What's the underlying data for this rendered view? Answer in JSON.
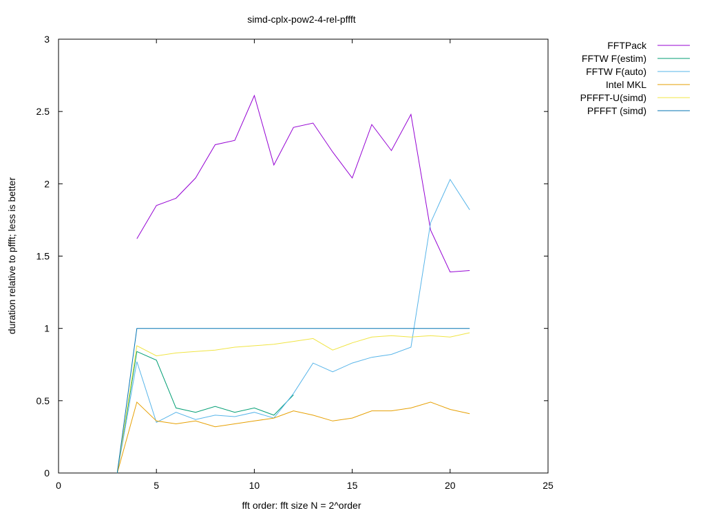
{
  "chart_data": {
    "type": "line",
    "title": "simd-cplx-pow2-4-rel-pffft",
    "xlabel": "fft order: fft size N = 2^order",
    "ylabel": "duration relative to pffft; less is better",
    "xlim": [
      0,
      25
    ],
    "ylim": [
      0,
      3
    ],
    "xticks": [
      "0",
      "5",
      "10",
      "15",
      "20",
      "25"
    ],
    "yticks": [
      "0",
      "0.5",
      "1",
      "1.5",
      "2",
      "2.5",
      "3"
    ],
    "grid": false,
    "legend_position": "outside-top-right",
    "series": [
      {
        "name": "FFTPack",
        "color": "#9400d3",
        "x": [
          4,
          5,
          6,
          7,
          8,
          9,
          10,
          11,
          12,
          13,
          14,
          15,
          16,
          17,
          18,
          19,
          20,
          21
        ],
        "y": [
          1.62,
          1.85,
          1.9,
          2.04,
          2.27,
          2.3,
          2.61,
          2.13,
          2.39,
          2.42,
          2.22,
          2.04,
          2.41,
          2.23,
          2.48,
          1.68,
          1.39,
          1.4
        ]
      },
      {
        "name": "FFTW F(estim)",
        "color": "#009e73",
        "x": [
          3,
          4,
          5,
          6,
          7,
          8,
          9,
          10,
          11,
          12
        ],
        "y": [
          0,
          0.84,
          0.78,
          0.45,
          0.42,
          0.46,
          0.42,
          0.45,
          0.4,
          0.54
        ]
      },
      {
        "name": "FFTW F(auto)",
        "color": "#56b4e9",
        "x": [
          3,
          4,
          5,
          6,
          7,
          8,
          9,
          10,
          11,
          12,
          13,
          14,
          15,
          16,
          17,
          18,
          19,
          20,
          21
        ],
        "y": [
          0,
          0.77,
          0.35,
          0.42,
          0.37,
          0.4,
          0.39,
          0.42,
          0.38,
          0.55,
          0.76,
          0.7,
          0.76,
          0.8,
          0.82,
          0.87,
          1.73,
          2.03,
          1.82
        ]
      },
      {
        "name": "Intel MKL",
        "color": "#e69f00",
        "x": [
          3,
          4,
          5,
          6,
          7,
          8,
          9,
          10,
          11,
          12,
          13,
          14,
          15,
          16,
          17,
          18,
          19,
          20,
          21
        ],
        "y": [
          0,
          0.49,
          0.36,
          0.34,
          0.36,
          0.32,
          0.34,
          0.36,
          0.38,
          0.43,
          0.4,
          0.36,
          0.38,
          0.43,
          0.43,
          0.45,
          0.49,
          0.44,
          0.41
        ]
      },
      {
        "name": "PFFFT-U(simd)",
        "color": "#f0e442",
        "x": [
          3,
          4,
          5,
          6,
          7,
          8,
          9,
          10,
          11,
          12,
          13,
          14,
          15,
          16,
          17,
          18,
          19,
          20,
          21
        ],
        "y": [
          0,
          0.88,
          0.81,
          0.83,
          0.84,
          0.85,
          0.87,
          0.88,
          0.89,
          0.91,
          0.93,
          0.85,
          0.9,
          0.94,
          0.95,
          0.94,
          0.95,
          0.94,
          0.97
        ]
      },
      {
        "name": "PFFFT (simd)",
        "color": "#0072b2",
        "x": [
          3,
          4,
          5,
          6,
          7,
          8,
          9,
          10,
          11,
          12,
          13,
          14,
          15,
          16,
          17,
          18,
          19,
          20,
          21
        ],
        "y": [
          0,
          1,
          1,
          1,
          1,
          1,
          1,
          1,
          1,
          1,
          1,
          1,
          1,
          1,
          1,
          1,
          1,
          1,
          1
        ]
      }
    ]
  }
}
